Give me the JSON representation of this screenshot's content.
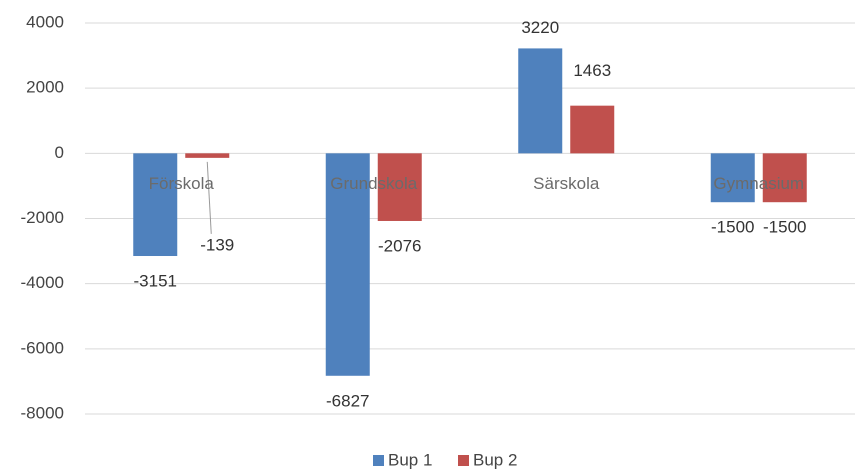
{
  "chart_data": {
    "type": "bar",
    "categories": [
      "Förskola",
      "Grundskola",
      "Särskola",
      "Gymnasium"
    ],
    "series": [
      {
        "name": "Bup 1",
        "color": "#4f81bd",
        "values": [
          -3151,
          -6827,
          3220,
          -1500
        ]
      },
      {
        "name": "Bup 2",
        "color": "#c0504d",
        "values": [
          -139,
          -2076,
          1463,
          -1500
        ]
      }
    ],
    "ylim": [
      -8000,
      4000
    ],
    "yticks": [
      -8000,
      -6000,
      -4000,
      -2000,
      0,
      2000,
      4000
    ],
    "grid": true,
    "legend": "bottom"
  }
}
